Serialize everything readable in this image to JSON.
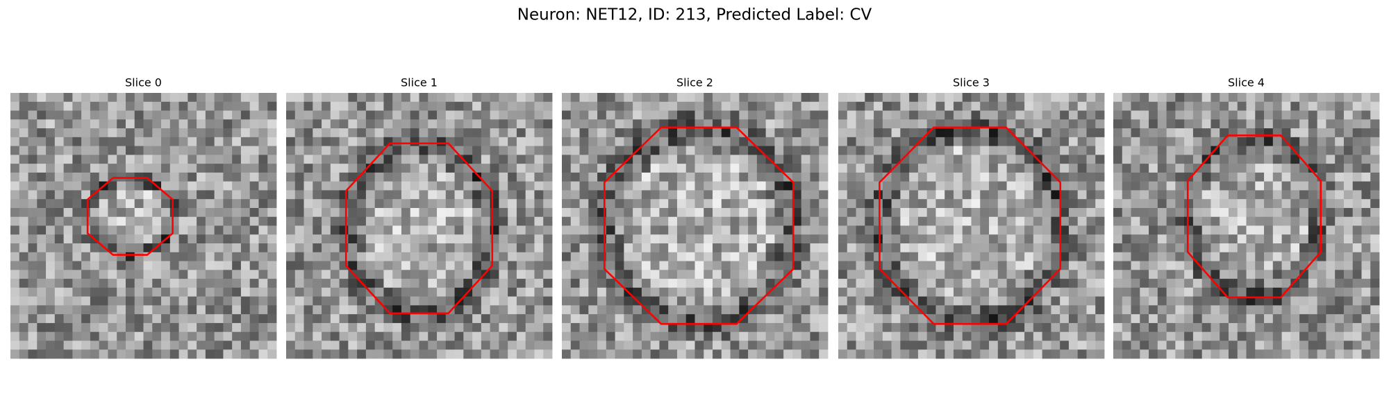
{
  "title": "Neuron: NET12, ID: 213, Predicted Label: CV",
  "panels": [
    {
      "title": "Slice 0"
    },
    {
      "title": "Slice 1"
    },
    {
      "title": "Slice 2"
    },
    {
      "title": "Slice 3"
    },
    {
      "title": "Slice 4"
    }
  ]
}
